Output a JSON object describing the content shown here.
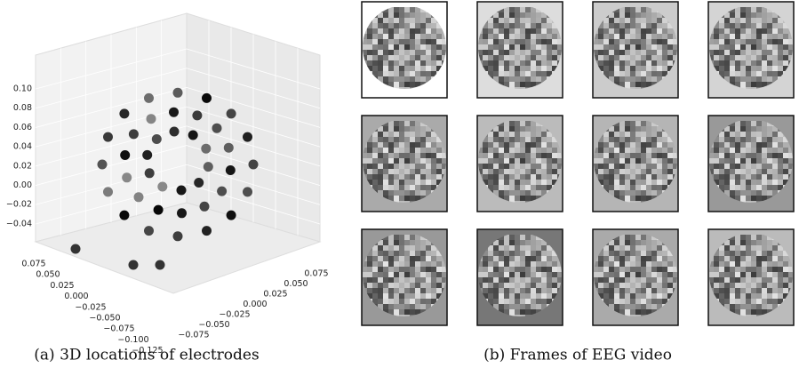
{
  "figure": {
    "panel_a": {
      "caption": "(a) 3D locations of electrodes",
      "z_ticks": [
        "0.10",
        "0.08",
        "0.06",
        "0.04",
        "0.02",
        "0.00",
        "−0.02",
        "−0.04"
      ],
      "y_ticks": [
        "0.075",
        "0.050",
        "0.025",
        "0.000",
        "−0.025",
        "−0.050",
        "−0.075",
        "−0.100",
        "−0.125"
      ],
      "x_ticks": [
        "0.075",
        "0.050",
        "0.025",
        "0.000",
        "−0.025",
        "−0.050",
        "−0.075"
      ]
    },
    "panel_b": {
      "caption": "(b) Frames of EEG video"
    }
  }
}
